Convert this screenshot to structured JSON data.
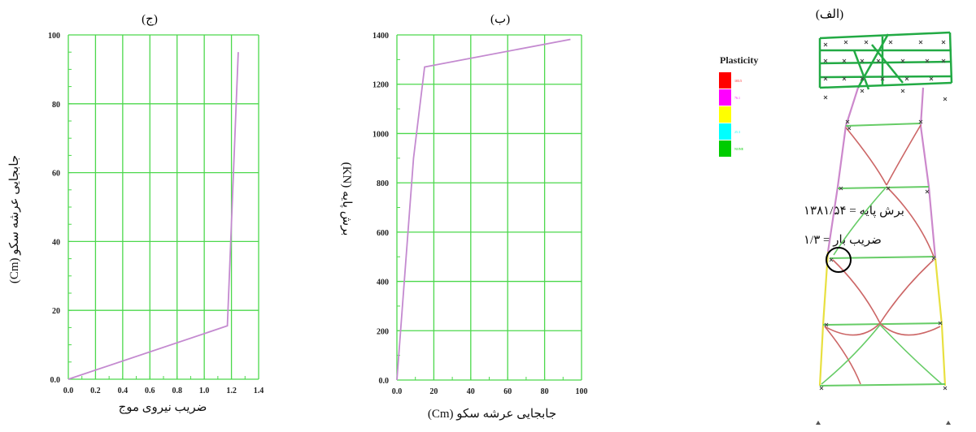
{
  "chart_data": [
    {
      "type": "line",
      "panel_label": "(ج)",
      "xlabel": "ضریب نیروی موج",
      "ylabel": "جابجایی عرشه سکو (Cm)",
      "xlim": [
        0,
        1.4
      ],
      "ylim": [
        0,
        100
      ],
      "x_ticks": [
        "0.0",
        "0.2",
        "0.4",
        "0.6",
        "0.8",
        "1.0",
        "1.2",
        "1.4"
      ],
      "y_ticks": [
        "0.0",
        "20",
        "40",
        "60",
        "80",
        "100"
      ],
      "grid": true,
      "series": [
        {
          "x": [
            0.0,
            1.17,
            1.25
          ],
          "y": [
            0,
            15.5,
            95
          ],
          "color": "#c48ad0"
        }
      ]
    },
    {
      "type": "line",
      "panel_label": "(ب)",
      "xlabel": "جابجایی عرشه سکو (Cm)",
      "ylabel": "برش پایه (KN)",
      "xlim": [
        0,
        100
      ],
      "ylim": [
        0,
        1400
      ],
      "x_ticks": [
        "0.0",
        "20",
        "40",
        "60",
        "80",
        "100"
      ],
      "y_ticks": [
        "0.0",
        "200",
        "400",
        "600",
        "800",
        "1000",
        "1200",
        "1400"
      ],
      "grid": true,
      "series": [
        {
          "x": [
            0,
            9,
            15,
            94
          ],
          "y": [
            0,
            900,
            1270,
            1382
          ],
          "color": "#c48ad0"
        }
      ]
    }
  ],
  "structure_panel": {
    "panel_label": "(الف)",
    "legend_title": "Plasticity",
    "legend_colors": [
      "#ff0000",
      "#ff00ff",
      "#ffff00",
      "#00ffff",
      "#00cc00"
    ],
    "legend_values": [
      "103.5",
      "76.1",
      "",
      "25.3",
      "NONE"
    ],
    "annotation_shear": "برش پایه = ۱۳۸۱/۵۴",
    "annotation_factor": "ضریب بار = ۱/۳",
    "colors": {
      "deck": "#22aa44",
      "leg_upper": "#cc88cc",
      "leg_lower": "#e8e040",
      "yielded": "#cc6666",
      "elastic": "#66cc66"
    }
  }
}
